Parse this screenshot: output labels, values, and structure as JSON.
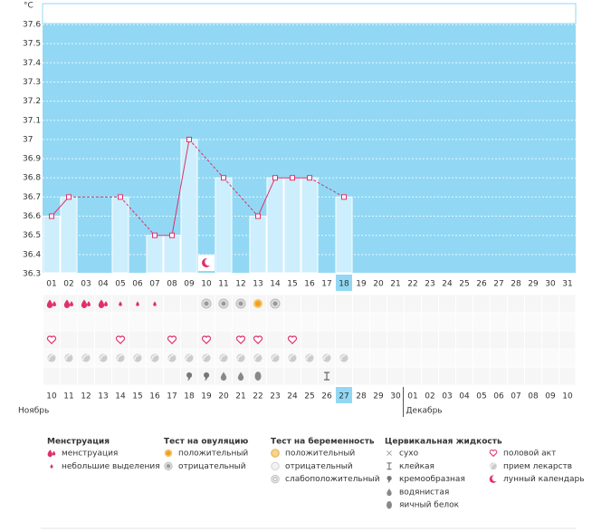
{
  "chart_data": {
    "type": "line",
    "unit": "°C",
    "categories": [
      "01",
      "02",
      "03",
      "04",
      "05",
      "06",
      "07",
      "08",
      "09",
      "10",
      "11",
      "12",
      "13",
      "14",
      "15",
      "16",
      "17",
      "18",
      "19",
      "20",
      "21",
      "22",
      "23",
      "24",
      "25",
      "26",
      "27",
      "28",
      "29",
      "30",
      "31"
    ],
    "values": [
      36.6,
      36.7,
      null,
      null,
      36.7,
      null,
      36.5,
      36.5,
      37,
      null,
      36.8,
      null,
      36.6,
      36.8,
      36.8,
      36.8,
      null,
      36.7,
      null,
      null,
      null,
      null,
      null,
      null,
      null,
      null,
      null,
      null,
      null,
      null,
      null
    ],
    "ylim": [
      36.3,
      37.6
    ],
    "yticks": [
      36.3,
      36.4,
      36.5,
      36.6,
      36.7,
      36.8,
      36.9,
      37,
      37.1,
      37.2,
      37.3,
      37.4,
      37.5,
      37.6
    ],
    "grid": true,
    "color": "#e0306a",
    "bar_color": "#cdeefc",
    "background": "#92d8f4",
    "today": "18",
    "lunar": [
      null,
      null,
      null,
      null,
      null,
      null,
      null,
      null,
      null,
      "moon",
      null,
      null,
      null,
      null,
      null,
      null,
      null,
      null,
      null,
      null,
      null,
      null,
      null,
      null,
      null,
      null,
      null,
      null,
      null,
      null,
      null
    ]
  },
  "rows": [
    [
      "heavy",
      "heavy",
      "heavy",
      "heavy",
      "light",
      "light",
      "light",
      null,
      null,
      "neg",
      "neg",
      "neg",
      "pos",
      "neg",
      null,
      null,
      null,
      null,
      null,
      null,
      null,
      null,
      null,
      null,
      null,
      null,
      null,
      null,
      null,
      null,
      null
    ],
    [
      null,
      null,
      null,
      null,
      null,
      null,
      null,
      null,
      null,
      null,
      null,
      null,
      null,
      null,
      null,
      null,
      null,
      null,
      null,
      null,
      null,
      null,
      null,
      null,
      null,
      null,
      null,
      null,
      null,
      null,
      null
    ],
    [
      "heart",
      null,
      null,
      null,
      "heart",
      null,
      null,
      "heart",
      null,
      "heart",
      null,
      "heart",
      "heart",
      null,
      "heart",
      null,
      null,
      null,
      null,
      null,
      null,
      null,
      null,
      null,
      null,
      null,
      null,
      null,
      null,
      null,
      null
    ],
    [
      "pill",
      "pill",
      "pill",
      "pill",
      "pill",
      "pill",
      "pill",
      "pill",
      "pill",
      "pill",
      "pill",
      "pill",
      "pill",
      "pill",
      "pill",
      "pill",
      "pill",
      "pill",
      null,
      null,
      null,
      null,
      null,
      null,
      null,
      null,
      null,
      null,
      null,
      null,
      null
    ],
    [
      null,
      null,
      null,
      null,
      null,
      null,
      null,
      null,
      "creamy",
      "creamy",
      "watery",
      "watery",
      "egg",
      null,
      null,
      null,
      "sticky",
      null,
      null,
      null,
      null,
      null,
      null,
      null,
      null,
      null,
      null,
      null,
      null,
      null,
      null
    ]
  ],
  "dates": {
    "labels": [
      "10",
      "11",
      "12",
      "13",
      "14",
      "15",
      "16",
      "17",
      "18",
      "19",
      "20",
      "21",
      "22",
      "23",
      "24",
      "25",
      "26",
      "27",
      "28",
      "29",
      "30",
      "01",
      "02",
      "03",
      "04",
      "05",
      "06",
      "07",
      "08",
      "09",
      "10"
    ],
    "weekend": [
      true,
      true,
      false,
      false,
      false,
      false,
      false,
      true,
      true,
      false,
      false,
      false,
      false,
      false,
      true,
      true,
      false,
      false,
      false,
      false,
      false,
      true,
      true,
      false,
      false,
      false,
      false,
      false,
      true,
      true,
      false
    ],
    "today": "27"
  },
  "months": [
    "Ноябрь",
    "Декабрь"
  ],
  "legend": [
    {
      "title": "Менструация",
      "items": [
        {
          "icon": "heavy",
          "label": "менструация"
        },
        {
          "icon": "light",
          "label": "небольшие выделения"
        }
      ]
    },
    {
      "title": "Тест на овуляцию",
      "items": [
        {
          "icon": "pos",
          "label": "положительный"
        },
        {
          "icon": "neg",
          "label": "отрицательный"
        }
      ]
    },
    {
      "title": "Тест на беременность",
      "items": [
        {
          "icon": "ppos",
          "label": "положительный"
        },
        {
          "icon": "pneg",
          "label": "отрицательный"
        },
        {
          "icon": "pweak",
          "label": "слабоположительный"
        }
      ]
    },
    {
      "title": "Цервикальная жидкость",
      "items": [
        {
          "icon": "dry",
          "label": "сухо"
        },
        {
          "icon": "sticky",
          "label": "клейкая"
        },
        {
          "icon": "creamy",
          "label": "кремообразная"
        },
        {
          "icon": "watery",
          "label": "водянистая"
        },
        {
          "icon": "egg",
          "label": "яичный белок"
        }
      ]
    },
    {
      "items": [
        {
          "icon": "heart",
          "label": "половой акт"
        },
        {
          "icon": "pill",
          "label": "прием лекарств"
        },
        {
          "icon": "moon",
          "label": "лунный календарь"
        }
      ]
    }
  ]
}
